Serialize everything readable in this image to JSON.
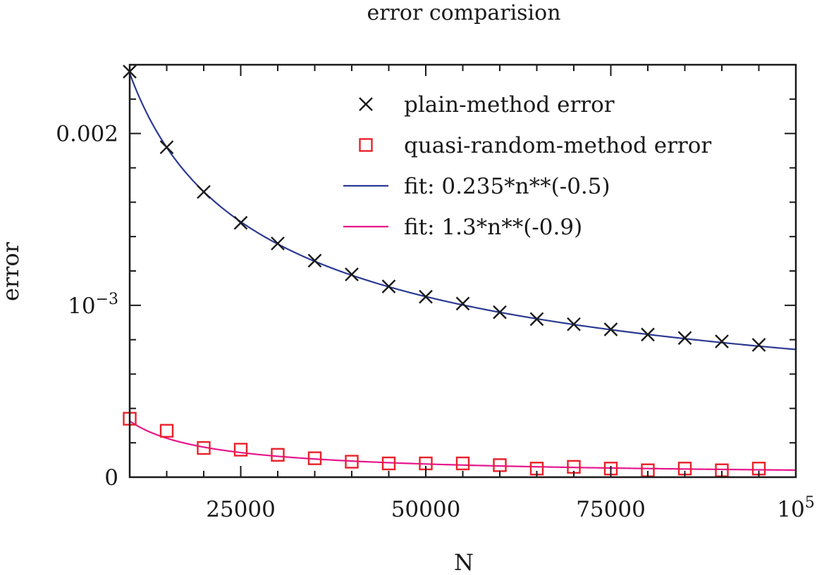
{
  "chart_data": {
    "type": "scatter",
    "title": "error comparision",
    "xlabel": "N",
    "ylabel": "error",
    "xlim": [
      10000,
      100000
    ],
    "ylim": [
      0,
      0.0024
    ],
    "grid": false,
    "legend_position": "top-right",
    "x_ticks": [
      {
        "value": 25000,
        "label": "25000"
      },
      {
        "value": 50000,
        "label": "50000"
      },
      {
        "value": 75000,
        "label": "75000"
      },
      {
        "value": 100000,
        "label": "10",
        "sup": "5"
      }
    ],
    "y_ticks": [
      {
        "value": 0,
        "label": "0"
      },
      {
        "value": 0.001,
        "label": "10",
        "sup": "−3"
      },
      {
        "value": 0.002,
        "label": "0.002"
      }
    ],
    "x_minor_step": 5000,
    "y_minor_step": 0.0002,
    "series": [
      {
        "name": "plain-method error",
        "marker": "x",
        "color": "#1a1a1a",
        "x": [
          10000,
          15000,
          20000,
          25000,
          30000,
          35000,
          40000,
          45000,
          50000,
          55000,
          60000,
          65000,
          70000,
          75000,
          80000,
          85000,
          90000,
          95000
        ],
        "y": [
          0.00236,
          0.00192,
          0.00166,
          0.00148,
          0.00136,
          0.00126,
          0.00118,
          0.00111,
          0.00105,
          0.00101,
          0.00096,
          0.00092,
          0.00089,
          0.00086,
          0.00083,
          0.00081,
          0.00079,
          0.00077
        ]
      },
      {
        "name": "quasi-random-method error",
        "marker": "square",
        "color": "#e8212a",
        "x": [
          10000,
          15000,
          20000,
          25000,
          30000,
          35000,
          40000,
          45000,
          50000,
          55000,
          60000,
          65000,
          70000,
          75000,
          80000,
          85000,
          90000,
          95000
        ],
        "y": [
          0.00034,
          0.00027,
          0.00017,
          0.00016,
          0.00013,
          0.00011,
          9e-05,
          8e-05,
          8e-05,
          8e-05,
          7e-05,
          5e-05,
          6e-05,
          5e-05,
          4e-05,
          5e-05,
          4e-05,
          5e-05
        ]
      }
    ],
    "fits": [
      {
        "name": "fit: 0.235*n**(-0.5)",
        "coef": 0.235,
        "exponent": -0.5,
        "color": "#2b3a92"
      },
      {
        "name": "fit: 1.3*n**(-0.9)",
        "coef": 1.3,
        "exponent": -0.9,
        "color": "#e6158c"
      }
    ]
  }
}
